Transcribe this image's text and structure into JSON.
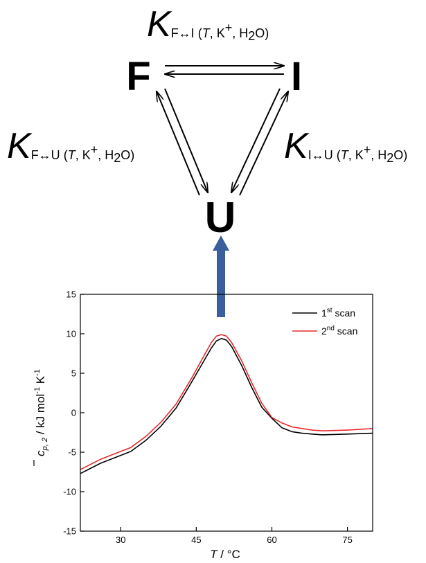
{
  "scheme": {
    "states": {
      "folded": "F",
      "intermediate": "I",
      "unfolded": "U"
    },
    "k_symbol": "K",
    "k_fi": {
      "sub": "F↔I",
      "args_open": " (",
      "temp": "T",
      "args_rest": ", K",
      "plus": "+",
      "water_pre": ", H",
      "water_sub": "2",
      "water_post": "O)"
    },
    "k_fu": {
      "sub": "F↔U",
      "args_open": " (",
      "temp": "T",
      "args_rest": ", K",
      "plus": "+",
      "water_pre": ", H",
      "water_sub": "2",
      "water_post": "O)"
    },
    "k_iu": {
      "sub": "I↔U",
      "args_open": " (",
      "temp": "T",
      "args_rest": ", K",
      "plus": "+",
      "water_pre": ", H",
      "water_sub": "2",
      "water_post": "O)"
    },
    "arrow_color": "#3b5f9c"
  },
  "chart_data": {
    "type": "line",
    "xlabel": {
      "italic": "T",
      "rest": " / °C"
    },
    "ylabel": {
      "symbol": "c",
      "sub": "p, 2",
      "mid": " / kJ mol",
      "sup1": "-1",
      "k": " K",
      "sup2": "-1"
    },
    "xlim": [
      22,
      80
    ],
    "ylim": [
      -15,
      15
    ],
    "xticks": [
      "30",
      "45",
      "60",
      "75"
    ],
    "xtick_values": [
      30,
      45,
      60,
      75
    ],
    "yticks": [
      "15",
      "10",
      "5",
      "0",
      "-5",
      "-10",
      "-15"
    ],
    "ytick_values": [
      15,
      10,
      5,
      0,
      -5,
      -10,
      -15
    ],
    "grid": false,
    "legend_position": "top-right",
    "series": [
      {
        "name_base": "1",
        "name_sup": "st",
        "name_rest": " scan",
        "color": "#000000",
        "x": [
          22,
          26,
          30,
          32,
          35,
          38,
          41,
          44,
          46,
          48,
          49,
          50,
          51,
          52,
          54,
          56,
          58,
          60,
          62,
          64,
          66,
          68,
          70,
          75,
          80
        ],
        "y": [
          -7.7,
          -6.4,
          -5.4,
          -4.9,
          -3.5,
          -1.7,
          0.6,
          3.8,
          6.0,
          8.2,
          9.1,
          9.4,
          9.2,
          8.4,
          6.0,
          3.2,
          0.7,
          -0.7,
          -1.9,
          -2.4,
          -2.6,
          -2.7,
          -2.8,
          -2.7,
          -2.6
        ]
      },
      {
        "name_base": "2",
        "name_sup": "nd",
        "name_rest": " scan",
        "color": "#e8292c",
        "x": [
          22,
          26,
          30,
          32,
          35,
          38,
          41,
          44,
          46,
          48,
          49,
          50,
          51,
          52,
          54,
          56,
          58,
          60,
          62,
          64,
          66,
          68,
          70,
          75,
          80
        ],
        "y": [
          -7.2,
          -5.9,
          -4.9,
          -4.4,
          -3.0,
          -1.2,
          1.1,
          4.3,
          6.6,
          8.9,
          9.7,
          9.9,
          9.7,
          8.9,
          6.6,
          3.8,
          1.2,
          -0.6,
          -1.3,
          -1.8,
          -2.0,
          -2.2,
          -2.3,
          -2.2,
          -2.0
        ]
      }
    ]
  }
}
